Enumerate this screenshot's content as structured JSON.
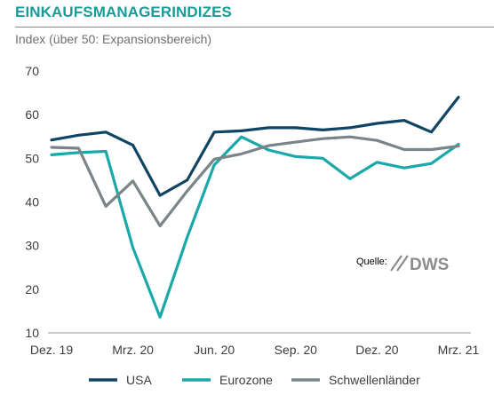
{
  "header": {
    "title": "EINKAUFSMANAGERINDIZES",
    "subtitle": "Index (über 50: Expansionsbereich)"
  },
  "source": {
    "label": "Quelle:",
    "brand": "DWS"
  },
  "chart_data": {
    "type": "line",
    "title": "EINKAUFSMANAGERINDIZES",
    "subtitle": "Index (über 50: Expansionsbereich)",
    "ylim": [
      10,
      70
    ],
    "yticks": [
      10,
      20,
      30,
      40,
      50,
      60,
      70
    ],
    "x_labels": [
      "Dez. 19",
      "Mrz. 20",
      "Jun. 20",
      "Sep. 20",
      "Dez. 20",
      "Mrz. 21"
    ],
    "x": [
      "Dez. 19",
      "Jan. 20",
      "Feb. 20",
      "Mrz. 20",
      "Apr. 20",
      "Mai. 20",
      "Jun. 20",
      "Jul. 20",
      "Aug. 20",
      "Sep. 20",
      "Okt. 20",
      "Nov. 20",
      "Dez. 20",
      "Jan. 21",
      "Feb. 21",
      "Mrz. 21"
    ],
    "grid": false,
    "legend_position": "bottom",
    "series": [
      {
        "name": "USA",
        "color": "#0f4563",
        "values": [
          54.2,
          55.3,
          56.0,
          53.0,
          41.5,
          45.0,
          56.0,
          56.3,
          57.0,
          57.0,
          56.5,
          57.0,
          58.0,
          58.7,
          56.0,
          64.0
        ]
      },
      {
        "name": "Eurozone",
        "color": "#1aa8a8",
        "values": [
          50.8,
          51.3,
          51.6,
          29.5,
          13.6,
          31.9,
          48.5,
          54.9,
          51.9,
          50.4,
          50.0,
          45.3,
          49.1,
          47.8,
          48.8,
          53.2
        ]
      },
      {
        "name": "Schwellenländer",
        "color": "#7a8589",
        "values": [
          52.5,
          52.3,
          39.0,
          44.8,
          34.5,
          42.5,
          49.8,
          51.0,
          52.9,
          53.7,
          54.5,
          54.9,
          54.1,
          52.0,
          52.0,
          52.8
        ]
      }
    ]
  }
}
